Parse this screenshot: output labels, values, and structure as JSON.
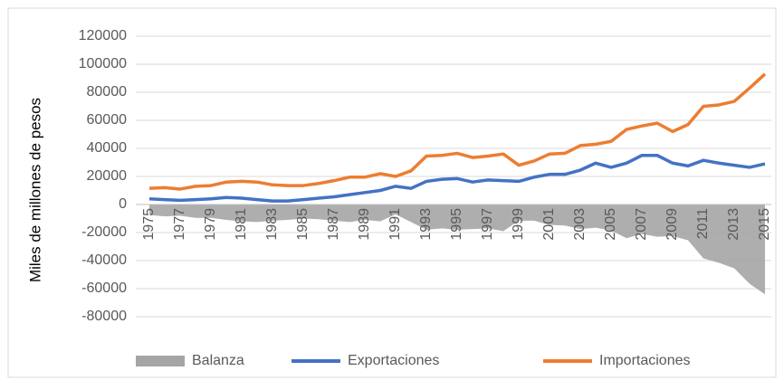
{
  "chart_data": {
    "type": "line",
    "y_label": "Miles de millones de pesos",
    "categories": [
      "1975",
      null,
      "1977",
      null,
      "1979",
      null,
      "1981",
      null,
      "1983",
      null,
      "1985",
      null,
      "1987",
      null,
      "1989",
      null,
      "1991",
      null,
      "1993",
      null,
      "1995",
      null,
      "1997",
      null,
      "1999",
      null,
      "2001",
      null,
      "2003",
      null,
      "2005",
      null,
      "2007",
      null,
      "2009",
      null,
      "2011",
      null,
      "2013",
      null,
      "2015"
    ],
    "series": [
      {
        "name": "Balanza",
        "type": "area",
        "color": "#a5a5a5",
        "values": [
          -7500,
          -8500,
          -8000,
          -9500,
          -9500,
          -11000,
          -12000,
          -12500,
          -11500,
          -11000,
          -10000,
          -10500,
          -11500,
          -12500,
          -11000,
          -12000,
          -7000,
          -12500,
          -18000,
          -17000,
          -18000,
          -17500,
          -17000,
          -19000,
          -11500,
          -11500,
          -14500,
          -15000,
          -17500,
          -16500,
          -18500,
          -24000,
          -21000,
          -23000,
          -22500,
          -25500,
          -38500,
          -41500,
          -45500,
          -56500,
          -64000
        ]
      },
      {
        "name": "Exportaciones",
        "type": "line",
        "color": "#4472c4",
        "values": [
          4000,
          3500,
          3000,
          3500,
          4000,
          5000,
          4500,
          3500,
          2500,
          2500,
          3500,
          4500,
          5500,
          7000,
          8500,
          10000,
          13000,
          11500,
          16500,
          18000,
          18500,
          16000,
          17500,
          17000,
          16500,
          19500,
          21500,
          21500,
          24500,
          29500,
          26500,
          29500,
          35000,
          35000,
          29500,
          27500,
          31500,
          29500,
          28000,
          26500,
          29000
        ]
      },
      {
        "name": "Importaciones",
        "type": "line",
        "color": "#ed7d31",
        "values": [
          11500,
          12000,
          11000,
          13000,
          13500,
          16000,
          16500,
          16000,
          14000,
          13500,
          13500,
          15000,
          17000,
          19500,
          19500,
          22000,
          20000,
          24000,
          34500,
          35000,
          36500,
          33500,
          34500,
          36000,
          28000,
          31000,
          36000,
          36500,
          42000,
          43000,
          45000,
          53500,
          56000,
          58000,
          52000,
          57000,
          70000,
          71000,
          73500,
          83000,
          93000
        ]
      }
    ],
    "ylim": [
      -80000,
      120000
    ],
    "yticks": [
      -80000,
      -60000,
      -40000,
      -20000,
      0,
      20000,
      40000,
      60000,
      80000,
      100000,
      120000
    ],
    "grid": true,
    "legend": "bottom"
  }
}
